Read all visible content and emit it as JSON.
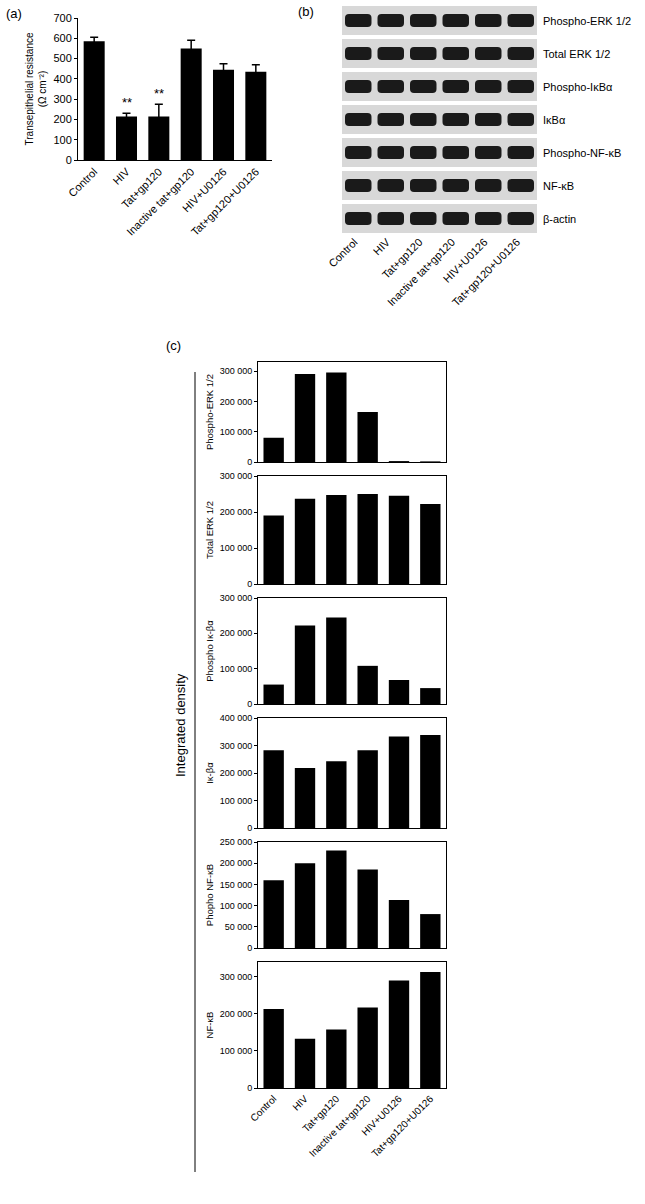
{
  "chart_data": [
    {
      "type": "bar",
      "categories": [
        "Control",
        "HIV",
        "Tat+gp120",
        "Inactive tat+gp120",
        "HIV+U0126",
        "Tat+gp120+U0126"
      ],
      "values": [
        585,
        215,
        215,
        550,
        445,
        435
      ],
      "errors": [
        20,
        15,
        60,
        40,
        30,
        35
      ],
      "color": "#000000",
      "ylabel": "Transepithelial resistance\n(Ω cm⁻²)",
      "ylim": [
        0,
        700
      ],
      "yticks": [
        0,
        100,
        200,
        300,
        400,
        500,
        600,
        700
      ],
      "grid": false,
      "annotations": [
        {
          "category": "HIV",
          "text": "**"
        },
        {
          "category": "Tat+gp120",
          "text": "**"
        }
      ]
    },
    {
      "type": "bar",
      "categories": [
        "Control",
        "HIV",
        "Tat+gp120",
        "Inactive tat+gp120",
        "HIV+U0126",
        "Tat+gp120+U0126"
      ],
      "values": [
        80000,
        290000,
        295000,
        165000,
        3000,
        2000
      ],
      "color": "#000000",
      "ylabel": "Phospho-ERK 1/2",
      "ylim": [
        0,
        330000
      ],
      "yticks": [
        0,
        {
          "value": 100000,
          "label": "100 000"
        },
        {
          "value": 200000,
          "label": "200 000"
        },
        {
          "value": 300000,
          "label": "300 000"
        }
      ],
      "grid": false,
      "tick_labels": "y"
    },
    {
      "type": "bar",
      "categories": [
        "Control",
        "HIV",
        "Tat+gp120",
        "Inactive tat+gp120",
        "HIV+U0126",
        "Tat+gp120+U0126"
      ],
      "values": [
        190000,
        237000,
        247000,
        250000,
        245000,
        222000
      ],
      "color": "#000000",
      "ylabel": "Total ERK 1/2",
      "ylim": [
        0,
        300000
      ],
      "yticks": [
        0,
        {
          "value": 100000,
          "label": "100 000"
        },
        {
          "value": 200000,
          "label": "200 000"
        },
        {
          "value": 300000,
          "label": "300 000"
        }
      ],
      "grid": false,
      "tick_labels": "y"
    },
    {
      "type": "bar",
      "categories": [
        "Control",
        "HIV",
        "Tat+gp120",
        "Inactive tat+gp120",
        "HIV+U0126",
        "Tat+gp120+U0126"
      ],
      "values": [
        55000,
        222000,
        245000,
        108000,
        68000,
        45000
      ],
      "color": "#000000",
      "ylabel": "Phospho Iκ-βα",
      "ylim": [
        0,
        300000
      ],
      "yticks": [
        0,
        {
          "value": 100000,
          "label": "100 000"
        },
        {
          "value": 200000,
          "label": "200 000"
        },
        {
          "value": 300000,
          "label": "300 000"
        }
      ],
      "grid": false,
      "tick_labels": "y"
    },
    {
      "type": "bar",
      "categories": [
        "Control",
        "HIV",
        "Tat+gp120",
        "Inactive tat+gp120",
        "HIV+U0126",
        "Tat+gp120+U0126"
      ],
      "values": [
        283000,
        218000,
        243000,
        283000,
        333000,
        338000
      ],
      "color": "#000000",
      "ylabel": "Iκ-βα",
      "ylim": [
        0,
        400000
      ],
      "yticks": [
        0,
        {
          "value": 100000,
          "label": "100 000"
        },
        {
          "value": 200000,
          "label": "200 000"
        },
        {
          "value": 300000,
          "label": "300 000"
        },
        {
          "value": 400000,
          "label": "400 000"
        }
      ],
      "grid": false,
      "tick_labels": "y"
    },
    {
      "type": "bar",
      "categories": [
        "Control",
        "HIV",
        "Tat+gp120",
        "Inactive tat+gp120",
        "HIV+U0126",
        "Tat+gp120+U0126"
      ],
      "values": [
        160000,
        200000,
        230000,
        185000,
        113000,
        80000
      ],
      "color": "#000000",
      "ylabel": "Phopho NF-κB",
      "ylim": [
        0,
        250000
      ],
      "yticks": [
        0,
        {
          "value": 50000,
          "label": "50 000"
        },
        {
          "value": 100000,
          "label": "100 000"
        },
        {
          "value": 150000,
          "label": "150 000"
        },
        {
          "value": 200000,
          "label": "200 000"
        },
        {
          "value": 250000,
          "label": "250 000"
        }
      ],
      "grid": false,
      "tick_labels": "y"
    },
    {
      "type": "bar",
      "categories": [
        "Control",
        "HIV",
        "Tat+gp120",
        "Inactive tat+gp120",
        "HIV+U0126",
        "Tat+gp120+U0126"
      ],
      "values": [
        213000,
        133000,
        158000,
        217000,
        290000,
        313000
      ],
      "color": "#000000",
      "ylabel": "NF-κB",
      "ylim": [
        0,
        340000
      ],
      "yticks": [
        0,
        {
          "value": 100000,
          "label": "100 000"
        },
        {
          "value": 200000,
          "label": "200 000"
        },
        {
          "value": 300000,
          "label": "300 000"
        }
      ],
      "grid": false
    }
  ],
  "labels": {
    "a": "(a)",
    "b": "(b)",
    "c": "(c)"
  },
  "c_ylabel": "Integrated density",
  "blot": {
    "rows": [
      "Phospho-ERK 1/2",
      "Total ERK 1/2",
      "Phospho-IκBα",
      "IκBα",
      "Phospho-NF-κB",
      "NF-κB",
      "β-actin"
    ],
    "lanes": [
      "Control",
      "HIV",
      "Tat+gp120",
      "Inactive tat+gp120",
      "HIV+U0126",
      "Tat+gp120+U0126"
    ]
  }
}
